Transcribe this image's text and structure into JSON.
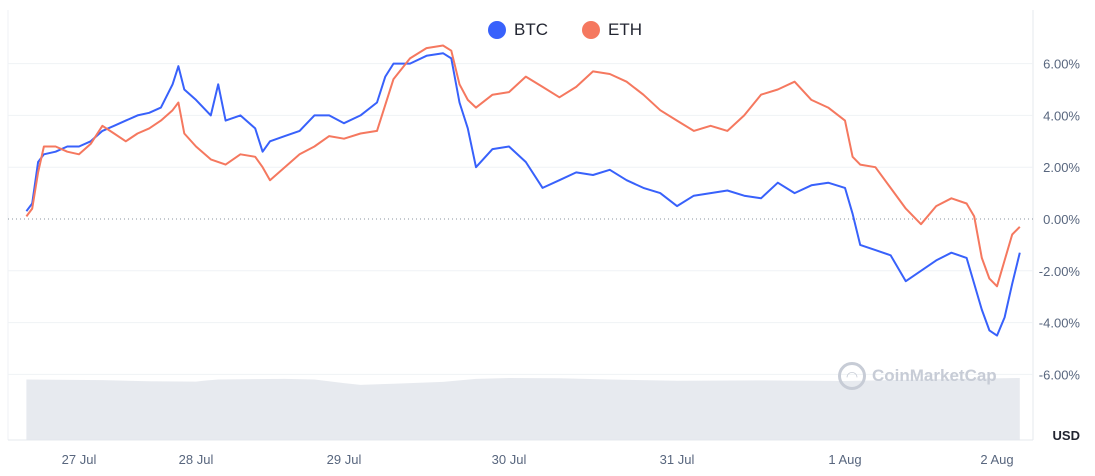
{
  "legend": [
    {
      "name": "BTC",
      "color": "#3861fb"
    },
    {
      "name": "ETH",
      "color": "#f5785f"
    }
  ],
  "watermark": {
    "text": "CoinMarketCap",
    "icon": "coinmarketcap-logo-icon"
  },
  "chart_data": {
    "type": "line",
    "unit_label": "USD",
    "y_ticks": [
      "6.00%",
      "4.00%",
      "2.00%",
      "0.00%",
      "-2.00%",
      "-4.00%",
      "-6.00%"
    ],
    "ylim": [
      -6,
      6
    ],
    "x_ticks": [
      "27 Jul",
      "28 Jul",
      "29 Jul",
      "30 Jul",
      "31 Jul",
      "1 Aug",
      "2 Aug"
    ],
    "xlim": [
      -0.45,
      6.15
    ],
    "grid": true,
    "legend_position": "top-center",
    "zero_line": "dotted",
    "series": [
      {
        "name": "BTC",
        "color": "#3861fb",
        "points": [
          [
            -0.45,
            0.3
          ],
          [
            -0.4,
            0.6
          ],
          [
            -0.35,
            2.2
          ],
          [
            -0.3,
            2.5
          ],
          [
            -0.2,
            2.6
          ],
          [
            -0.1,
            2.8
          ],
          [
            0.0,
            2.8
          ],
          [
            0.1,
            3.0
          ],
          [
            0.2,
            3.4
          ],
          [
            0.3,
            3.6
          ],
          [
            0.4,
            3.8
          ],
          [
            0.5,
            4.0
          ],
          [
            0.6,
            4.1
          ],
          [
            0.7,
            4.3
          ],
          [
            0.8,
            5.2
          ],
          [
            0.85,
            5.9
          ],
          [
            0.9,
            5.0
          ],
          [
            1.0,
            4.6
          ],
          [
            1.1,
            4.0
          ],
          [
            1.15,
            5.2
          ],
          [
            1.2,
            3.8
          ],
          [
            1.3,
            4.0
          ],
          [
            1.4,
            3.5
          ],
          [
            1.45,
            2.6
          ],
          [
            1.5,
            3.0
          ],
          [
            1.6,
            3.2
          ],
          [
            1.7,
            3.4
          ],
          [
            1.8,
            4.0
          ],
          [
            1.9,
            4.0
          ],
          [
            2.0,
            3.7
          ],
          [
            2.1,
            4.0
          ],
          [
            2.2,
            4.5
          ],
          [
            2.25,
            5.5
          ],
          [
            2.3,
            6.0
          ],
          [
            2.4,
            6.0
          ],
          [
            2.5,
            6.3
          ],
          [
            2.6,
            6.4
          ],
          [
            2.65,
            6.2
          ],
          [
            2.7,
            4.5
          ],
          [
            2.75,
            3.5
          ],
          [
            2.8,
            2.0
          ],
          [
            2.9,
            2.7
          ],
          [
            3.0,
            2.8
          ],
          [
            3.1,
            2.2
          ],
          [
            3.2,
            1.2
          ],
          [
            3.3,
            1.5
          ],
          [
            3.4,
            1.8
          ],
          [
            3.5,
            1.7
          ],
          [
            3.6,
            1.9
          ],
          [
            3.7,
            1.5
          ],
          [
            3.8,
            1.2
          ],
          [
            3.9,
            1.0
          ],
          [
            4.0,
            0.5
          ],
          [
            4.1,
            0.9
          ],
          [
            4.2,
            1.0
          ],
          [
            4.3,
            1.1
          ],
          [
            4.4,
            0.9
          ],
          [
            4.5,
            0.8
          ],
          [
            4.6,
            1.4
          ],
          [
            4.7,
            1.0
          ],
          [
            4.8,
            1.3
          ],
          [
            4.9,
            1.4
          ],
          [
            5.0,
            1.2
          ],
          [
            5.05,
            0.2
          ],
          [
            5.1,
            -1.0
          ],
          [
            5.2,
            -1.2
          ],
          [
            5.3,
            -1.4
          ],
          [
            5.4,
            -2.4
          ],
          [
            5.5,
            -2.0
          ],
          [
            5.6,
            -1.6
          ],
          [
            5.7,
            -1.3
          ],
          [
            5.8,
            -1.5
          ],
          [
            5.9,
            -3.5
          ],
          [
            5.95,
            -4.3
          ],
          [
            6.0,
            -4.5
          ],
          [
            6.05,
            -3.8
          ],
          [
            6.1,
            -2.5
          ],
          [
            6.15,
            -1.3
          ]
        ]
      },
      {
        "name": "ETH",
        "color": "#f5785f",
        "points": [
          [
            -0.45,
            0.1
          ],
          [
            -0.4,
            0.4
          ],
          [
            -0.35,
            1.8
          ],
          [
            -0.3,
            2.8
          ],
          [
            -0.2,
            2.8
          ],
          [
            -0.1,
            2.6
          ],
          [
            0.0,
            2.5
          ],
          [
            0.1,
            2.9
          ],
          [
            0.2,
            3.6
          ],
          [
            0.3,
            3.3
          ],
          [
            0.4,
            3.0
          ],
          [
            0.5,
            3.3
          ],
          [
            0.6,
            3.5
          ],
          [
            0.7,
            3.8
          ],
          [
            0.8,
            4.2
          ],
          [
            0.85,
            4.5
          ],
          [
            0.9,
            3.3
          ],
          [
            1.0,
            2.8
          ],
          [
            1.1,
            2.3
          ],
          [
            1.2,
            2.1
          ],
          [
            1.3,
            2.5
          ],
          [
            1.4,
            2.4
          ],
          [
            1.45,
            2.0
          ],
          [
            1.5,
            1.5
          ],
          [
            1.6,
            2.0
          ],
          [
            1.7,
            2.5
          ],
          [
            1.8,
            2.8
          ],
          [
            1.9,
            3.2
          ],
          [
            2.0,
            3.1
          ],
          [
            2.1,
            3.3
          ],
          [
            2.2,
            3.4
          ],
          [
            2.3,
            5.4
          ],
          [
            2.4,
            6.2
          ],
          [
            2.5,
            6.6
          ],
          [
            2.6,
            6.7
          ],
          [
            2.65,
            6.5
          ],
          [
            2.7,
            5.2
          ],
          [
            2.75,
            4.6
          ],
          [
            2.8,
            4.3
          ],
          [
            2.9,
            4.8
          ],
          [
            3.0,
            4.9
          ],
          [
            3.1,
            5.5
          ],
          [
            3.2,
            5.1
          ],
          [
            3.3,
            4.7
          ],
          [
            3.4,
            5.1
          ],
          [
            3.5,
            5.7
          ],
          [
            3.6,
            5.6
          ],
          [
            3.7,
            5.3
          ],
          [
            3.8,
            4.8
          ],
          [
            3.9,
            4.2
          ],
          [
            4.0,
            3.8
          ],
          [
            4.1,
            3.4
          ],
          [
            4.2,
            3.6
          ],
          [
            4.3,
            3.4
          ],
          [
            4.4,
            4.0
          ],
          [
            4.5,
            4.8
          ],
          [
            4.6,
            5.0
          ],
          [
            4.7,
            5.3
          ],
          [
            4.8,
            4.6
          ],
          [
            4.9,
            4.3
          ],
          [
            5.0,
            3.8
          ],
          [
            5.05,
            2.4
          ],
          [
            5.1,
            2.1
          ],
          [
            5.2,
            2.0
          ],
          [
            5.3,
            1.2
          ],
          [
            5.4,
            0.4
          ],
          [
            5.5,
            -0.2
          ],
          [
            5.6,
            0.5
          ],
          [
            5.7,
            0.8
          ],
          [
            5.8,
            0.6
          ],
          [
            5.85,
            0.1
          ],
          [
            5.9,
            -1.5
          ],
          [
            5.95,
            -2.3
          ],
          [
            6.0,
            -2.6
          ],
          [
            6.05,
            -1.6
          ],
          [
            6.1,
            -0.6
          ],
          [
            6.15,
            -0.3
          ]
        ]
      }
    ],
    "volume": {
      "name": "volume",
      "color": "#e3e6ec",
      "points": [
        [
          -0.45,
          1.0
        ],
        [
          0.2,
          0.98
        ],
        [
          0.6,
          0.94
        ],
        [
          1.0,
          0.93
        ],
        [
          1.05,
          0.96
        ],
        [
          1.15,
          1.0
        ],
        [
          1.6,
          1.02
        ],
        [
          1.8,
          1.0
        ],
        [
          2.0,
          0.88
        ],
        [
          2.1,
          0.82
        ],
        [
          2.3,
          0.86
        ],
        [
          2.6,
          0.92
        ],
        [
          2.8,
          1.02
        ],
        [
          3.0,
          1.05
        ],
        [
          3.3,
          1.04
        ],
        [
          3.6,
          1.0
        ],
        [
          4.0,
          0.96
        ],
        [
          4.5,
          0.97
        ],
        [
          5.0,
          0.95
        ],
        [
          5.5,
          1.0
        ],
        [
          6.15,
          1.05
        ]
      ]
    }
  }
}
